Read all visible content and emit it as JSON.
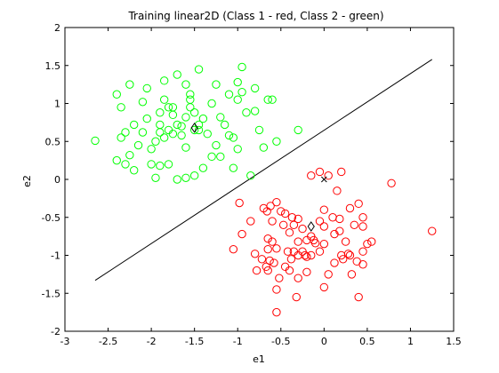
{
  "chart_data": {
    "type": "scatter",
    "title": "Training linear2D (Class 1 - red, Class 2 - green)",
    "xlabel": "e1",
    "ylabel": "e2",
    "xlim": [
      -3,
      1.5
    ],
    "ylim": [
      -2,
      2
    ],
    "x_ticks": [
      -3,
      -2.5,
      -2,
      -1.5,
      -1,
      -0.5,
      0,
      0.5,
      1,
      1.5
    ],
    "y_ticks": [
      -2,
      -1.5,
      -1,
      -0.5,
      0,
      0.5,
      1,
      1.5,
      2
    ],
    "x_tick_labels": [
      "-3",
      "-2.5",
      "-2",
      "-1.5",
      "-1",
      "-0.5",
      "0",
      "0.5",
      "1",
      "1.5"
    ],
    "y_tick_labels": [
      "-2",
      "-1.5",
      "-1",
      "-0.5",
      "0",
      "0.5",
      "1",
      "1.5",
      "2"
    ],
    "grid": false,
    "marker": "open-circle",
    "series": [
      {
        "color": "#ff0000",
        "points": [
          [
            -0.98,
            -0.31
          ],
          [
            -0.7,
            -0.38
          ],
          [
            -0.62,
            -0.35
          ],
          [
            -0.66,
            -0.42
          ],
          [
            -0.55,
            -0.3
          ],
          [
            -0.5,
            -0.42
          ],
          [
            -0.45,
            -0.45
          ],
          [
            -0.3,
            -0.52
          ],
          [
            -0.37,
            -0.5
          ],
          [
            -0.47,
            -0.6
          ],
          [
            -0.6,
            -0.55
          ],
          [
            -0.85,
            -0.55
          ],
          [
            -0.95,
            -0.72
          ],
          [
            -0.65,
            -0.78
          ],
          [
            -0.6,
            -0.82
          ],
          [
            -0.55,
            -0.91
          ],
          [
            -0.65,
            -0.92
          ],
          [
            -0.72,
            -1.05
          ],
          [
            -0.63,
            -1.07
          ],
          [
            -0.58,
            -1.1
          ],
          [
            -0.67,
            -1.15
          ],
          [
            -0.78,
            -1.2
          ],
          [
            -0.65,
            -1.2
          ],
          [
            -0.52,
            -1.3
          ],
          [
            -0.55,
            -1.45
          ],
          [
            -0.45,
            -1.15
          ],
          [
            -0.4,
            -1.2
          ],
          [
            -0.38,
            -1.05
          ],
          [
            -0.42,
            -0.95
          ],
          [
            -0.35,
            -0.95
          ],
          [
            -0.3,
            -0.82
          ],
          [
            -0.4,
            -0.7
          ],
          [
            -0.25,
            -0.65
          ],
          [
            -0.25,
            -0.95
          ],
          [
            -0.22,
            -1.0
          ],
          [
            -0.2,
            -1.02
          ],
          [
            -0.3,
            -1.0
          ],
          [
            -0.15,
            -0.75
          ],
          [
            -0.12,
            -0.8
          ],
          [
            -0.1,
            -0.84
          ],
          [
            -0.05,
            -0.95
          ],
          [
            0.0,
            -0.85
          ],
          [
            -0.05,
            -0.55
          ],
          [
            0.0,
            -0.62
          ],
          [
            0.0,
            -0.4
          ],
          [
            -0.05,
            0.1
          ],
          [
            -0.15,
            0.05
          ],
          [
            0.05,
            0.05
          ],
          [
            0.2,
            0.1
          ],
          [
            0.15,
            -0.15
          ],
          [
            0.3,
            -0.38
          ],
          [
            0.18,
            -0.52
          ],
          [
            0.18,
            -0.68
          ],
          [
            0.12,
            -0.72
          ],
          [
            0.25,
            -0.82
          ],
          [
            0.35,
            -0.6
          ],
          [
            0.4,
            -0.32
          ],
          [
            0.45,
            -0.5
          ],
          [
            0.45,
            -0.62
          ],
          [
            0.5,
            -0.85
          ],
          [
            0.55,
            -0.82
          ],
          [
            0.45,
            -0.95
          ],
          [
            0.38,
            -1.08
          ],
          [
            0.45,
            -1.12
          ],
          [
            0.3,
            -1.0
          ],
          [
            0.28,
            -0.98
          ],
          [
            0.22,
            -1.05
          ],
          [
            0.2,
            -1.0
          ],
          [
            0.12,
            -1.1
          ],
          [
            0.05,
            -1.25
          ],
          [
            0.32,
            -1.25
          ],
          [
            0.4,
            -1.55
          ],
          [
            0.0,
            -1.42
          ],
          [
            -0.2,
            -1.22
          ],
          [
            -0.3,
            -1.3
          ],
          [
            -0.32,
            -1.55
          ],
          [
            -0.55,
            -1.75
          ],
          [
            -1.05,
            -0.92
          ],
          [
            -0.8,
            -0.98
          ],
          [
            0.78,
            -0.05
          ],
          [
            1.25,
            -0.68
          ],
          [
            -0.15,
            -1.0
          ],
          [
            -0.2,
            -0.8
          ],
          [
            -0.35,
            -0.6
          ],
          [
            0.1,
            -0.5
          ]
        ]
      },
      {
        "color": "#00ff00",
        "points": [
          [
            -2.65,
            0.51
          ],
          [
            -2.4,
            1.12
          ],
          [
            -2.35,
            0.95
          ],
          [
            -2.25,
            1.25
          ],
          [
            -2.35,
            0.55
          ],
          [
            -2.3,
            0.62
          ],
          [
            -2.2,
            0.72
          ],
          [
            -2.25,
            0.32
          ],
          [
            -2.3,
            0.2
          ],
          [
            -2.2,
            0.12
          ],
          [
            -2.15,
            0.45
          ],
          [
            -2.1,
            1.02
          ],
          [
            -2.05,
            1.2
          ],
          [
            -2.05,
            0.8
          ],
          [
            -2.0,
            0.4
          ],
          [
            -2.0,
            0.2
          ],
          [
            -1.95,
            0.5
          ],
          [
            -1.9,
            0.72
          ],
          [
            -1.85,
            0.55
          ],
          [
            -1.9,
            0.62
          ],
          [
            -1.85,
            1.05
          ],
          [
            -1.85,
            1.3
          ],
          [
            -1.8,
            0.95
          ],
          [
            -1.75,
            0.85
          ],
          [
            -1.7,
            0.72
          ],
          [
            -1.75,
            0.6
          ],
          [
            -1.65,
            0.58
          ],
          [
            -1.6,
            0.82
          ],
          [
            -1.55,
            0.95
          ],
          [
            -1.55,
            1.05
          ],
          [
            -1.5,
            0.88
          ],
          [
            -1.45,
            0.65
          ],
          [
            -1.4,
            0.8
          ],
          [
            -1.35,
            0.6
          ],
          [
            -1.45,
            1.45
          ],
          [
            -1.3,
            1.0
          ],
          [
            -1.2,
            0.82
          ],
          [
            -1.15,
            0.72
          ],
          [
            -1.1,
            0.58
          ],
          [
            -1.05,
            0.55
          ],
          [
            -1.0,
            0.4
          ],
          [
            -1.0,
            1.05
          ],
          [
            -0.95,
            1.15
          ],
          [
            -0.9,
            0.88
          ],
          [
            -0.8,
            1.2
          ],
          [
            -0.8,
            0.9
          ],
          [
            -0.65,
            1.05
          ],
          [
            -0.6,
            1.05
          ],
          [
            -0.55,
            0.5
          ],
          [
            -0.75,
            0.65
          ],
          [
            -0.7,
            0.42
          ],
          [
            -0.3,
            0.65
          ],
          [
            -0.85,
            0.05
          ],
          [
            -1.05,
            0.15
          ],
          [
            -1.2,
            0.3
          ],
          [
            -1.4,
            0.15
          ],
          [
            -1.5,
            0.05
          ],
          [
            -1.6,
            0.02
          ],
          [
            -1.7,
            0.0
          ],
          [
            -1.8,
            0.2
          ],
          [
            -1.9,
            0.18
          ],
          [
            -1.95,
            0.02
          ],
          [
            -1.7,
            1.38
          ],
          [
            -1.6,
            1.25
          ],
          [
            -1.55,
            1.12
          ],
          [
            -1.25,
            1.25
          ],
          [
            -1.1,
            1.12
          ],
          [
            -1.0,
            1.28
          ],
          [
            -0.95,
            1.48
          ],
          [
            -2.4,
            0.25
          ],
          [
            -1.75,
            0.95
          ],
          [
            -1.65,
            0.7
          ],
          [
            -1.5,
            0.65
          ],
          [
            -1.45,
            0.72
          ],
          [
            -1.9,
            0.88
          ],
          [
            -1.8,
            0.65
          ],
          [
            -2.1,
            0.62
          ],
          [
            -1.25,
            0.45
          ],
          [
            -1.3,
            0.3
          ],
          [
            -1.6,
            0.42
          ]
        ]
      }
    ],
    "boundary_line": [
      [
        -2.65,
        -1.33
      ],
      [
        1.25,
        1.58
      ]
    ],
    "centroid_markers": [
      {
        "marker": "open-diamond",
        "points": [
          [
            -1.5,
            0.68
          ],
          [
            -0.15,
            -0.62
          ]
        ]
      },
      {
        "marker": "cross",
        "points": [
          [
            0.0,
            0.0
          ]
        ]
      }
    ]
  }
}
